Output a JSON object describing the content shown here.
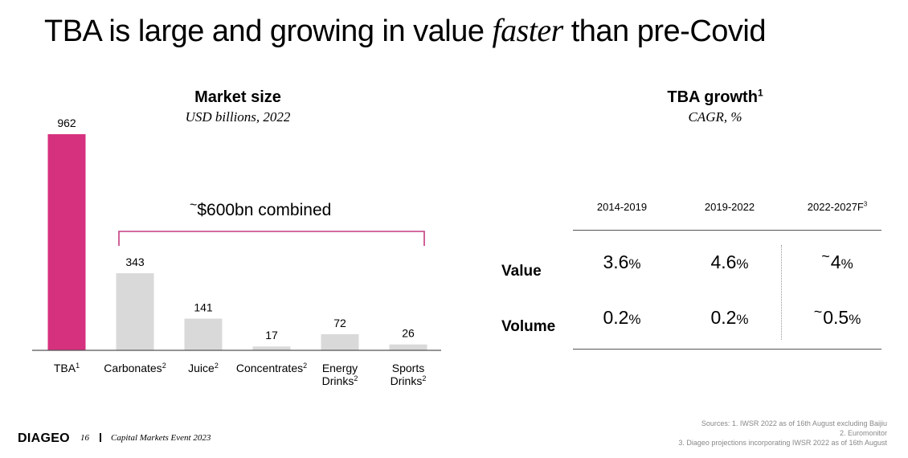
{
  "title": {
    "before": "TBA is large and growing in value ",
    "emphasis": "faster",
    "after": " than pre-Covid"
  },
  "left_panel": {
    "title": "Market size",
    "subtitle": "USD billions, 2022"
  },
  "right_panel": {
    "title": "TBA growth",
    "title_sup": "1",
    "subtitle": "CAGR, %"
  },
  "annotation": {
    "tilde": "~",
    "text": "$600bn combined"
  },
  "colors": {
    "tba": "#d6317f",
    "other": "#d9d9d9",
    "bracket": "#c43b7f",
    "axis": "#555555"
  },
  "chart_data": {
    "type": "bar",
    "title": "Market size",
    "subtitle": "USD billions, 2022",
    "categories": [
      {
        "label": "TBA",
        "sup": "1"
      },
      {
        "label": "Carbonates",
        "sup": "2"
      },
      {
        "label": "Juice",
        "sup": "2"
      },
      {
        "label": "Concentrates",
        "sup": "2"
      },
      {
        "label": "Energy Drinks",
        "sup": "2"
      },
      {
        "label": "Sports Drinks",
        "sup": "2"
      }
    ],
    "values": [
      962,
      343,
      141,
      17,
      72,
      26
    ],
    "ylim": [
      0,
      1000
    ],
    "grid": false
  },
  "growth_table": {
    "columns": [
      "2014-2019",
      "2019-2022",
      "2022-2027F"
    ],
    "last_col_sup": "3",
    "rows": [
      {
        "label": "Value",
        "cells": [
          {
            "num": "3.6",
            "pct": "%",
            "tilde": ""
          },
          {
            "num": "4.6",
            "pct": "%",
            "tilde": ""
          },
          {
            "num": "4",
            "pct": "%",
            "tilde": "~"
          }
        ]
      },
      {
        "label": "Volume",
        "cells": [
          {
            "num": "0.2",
            "pct": "%",
            "tilde": ""
          },
          {
            "num": "0.2",
            "pct": "%",
            "tilde": ""
          },
          {
            "num": "0.5",
            "pct": "%",
            "tilde": "~"
          }
        ]
      }
    ]
  },
  "footer": {
    "logo": "DIAGEO",
    "page": "16",
    "event": "Capital Markets Event 2023",
    "sources": [
      "Sources: 1. IWSR 2022 as of 16th August excluding Baijiu",
      "2. Euromonitor",
      "3. Diageo projections incorporating IWSR 2022 as of 16th August"
    ]
  }
}
